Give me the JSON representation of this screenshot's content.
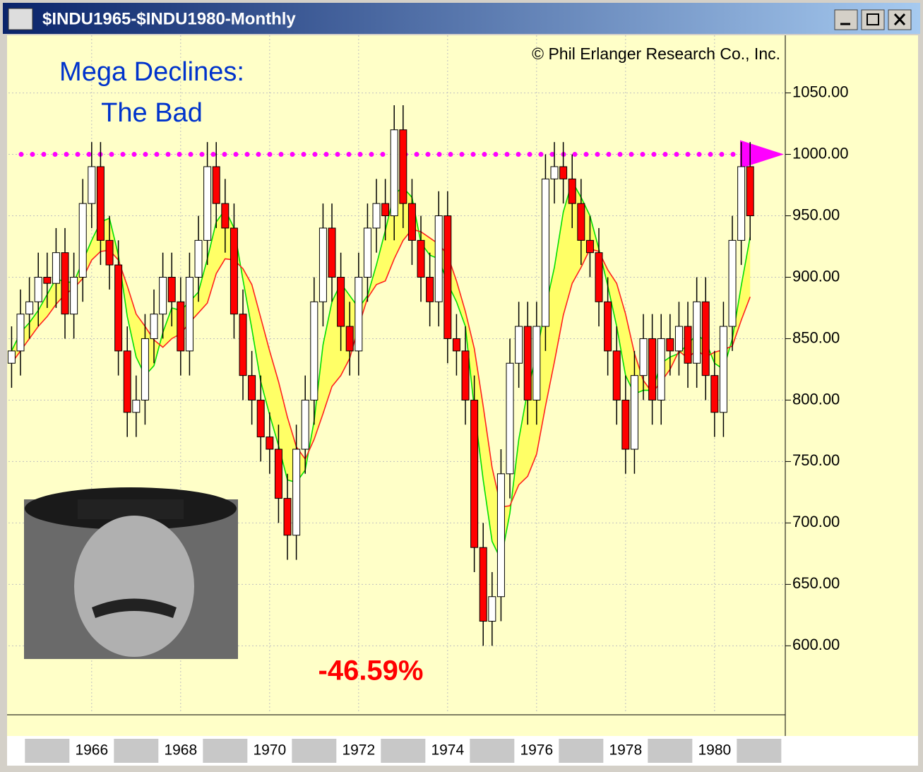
{
  "window_title": "$INDU1965-$INDU1980-Monthly",
  "chart_data": {
    "type": "candlestick",
    "copyright": "© Phil Erlanger Research Co., Inc.",
    "annotations": [
      "Mega Declines:",
      "The Bad",
      "-46.59%"
    ],
    "up_color": "#ffffff",
    "down_color": "#ff0000",
    "band_color": "#ffff66",
    "reference_line": {
      "value": 1000,
      "color": "#ff00ff"
    },
    "xlim": [
      1964.13,
      1981.59
    ],
    "ylim": [
      545,
      1090
    ],
    "xticks": [
      1966,
      1968,
      1970,
      1972,
      1974,
      1976,
      1978,
      1980
    ],
    "yticks": [
      {
        "value": 600,
        "label": "600.00"
      },
      {
        "value": 650,
        "label": "650.00"
      },
      {
        "value": 700,
        "label": "700.00"
      },
      {
        "value": 750,
        "label": "750.00"
      },
      {
        "value": 800,
        "label": "800.00"
      },
      {
        "value": 850,
        "label": "850.00"
      },
      {
        "value": 900,
        "label": "900.00"
      },
      {
        "value": 950,
        "label": "950.00"
      },
      {
        "value": 1000,
        "label": "1000.00"
      },
      {
        "value": 1050,
        "label": "1050.00"
      }
    ],
    "grid": true,
    "x": [
      1964.2,
      1964.4,
      1964.6,
      1964.8,
      1965.0,
      1965.2,
      1965.4,
      1965.6,
      1965.8,
      1966.0,
      1966.2,
      1966.4,
      1966.6,
      1966.8,
      1967.0,
      1967.2,
      1967.4,
      1967.6,
      1967.8,
      1968.0,
      1968.2,
      1968.4,
      1968.6,
      1968.8,
      1969.0,
      1969.2,
      1969.4,
      1969.6,
      1969.8,
      1970.0,
      1970.2,
      1970.4,
      1970.6,
      1970.8,
      1971.0,
      1971.2,
      1971.4,
      1971.6,
      1971.8,
      1972.0,
      1972.2,
      1972.4,
      1972.6,
      1972.8,
      1973.0,
      1973.2,
      1973.4,
      1973.6,
      1973.8,
      1974.0,
      1974.2,
      1974.4,
      1974.6,
      1974.8,
      1975.0,
      1975.2,
      1975.4,
      1975.6,
      1975.8,
      1976.0,
      1976.2,
      1976.4,
      1976.6,
      1976.8,
      1977.0,
      1977.2,
      1977.4,
      1977.6,
      1977.8,
      1978.0,
      1978.2,
      1978.4,
      1978.6,
      1978.8,
      1979.0,
      1979.2,
      1979.4,
      1979.6,
      1979.8,
      1980.0,
      1980.2,
      1980.4,
      1980.6,
      1980.8
    ],
    "open": [
      830,
      840,
      870,
      880,
      900,
      895,
      920,
      870,
      900,
      960,
      990,
      930,
      910,
      840,
      790,
      800,
      850,
      870,
      900,
      880,
      840,
      900,
      930,
      990,
      960,
      940,
      870,
      820,
      800,
      770,
      760,
      720,
      690,
      760,
      800,
      880,
      940,
      900,
      860,
      840,
      900,
      940,
      960,
      950,
      1020,
      960,
      930,
      900,
      880,
      950,
      850,
      840,
      800,
      680,
      620,
      640,
      740,
      830,
      860,
      800,
      860,
      980,
      990,
      980,
      960,
      930,
      920,
      880,
      840,
      800,
      760,
      820,
      850,
      800,
      850,
      840,
      860,
      830,
      880,
      820,
      790,
      860,
      930,
      990
    ],
    "high": [
      860,
      890,
      900,
      920,
      920,
      940,
      940,
      920,
      980,
      1010,
      1010,
      950,
      930,
      860,
      820,
      870,
      890,
      920,
      920,
      900,
      920,
      950,
      1010,
      1010,
      980,
      960,
      890,
      840,
      820,
      790,
      780,
      740,
      780,
      820,
      900,
      960,
      960,
      920,
      880,
      920,
      960,
      980,
      980,
      1040,
      1040,
      980,
      950,
      920,
      970,
      970,
      870,
      860,
      820,
      700,
      660,
      760,
      850,
      880,
      880,
      880,
      1000,
      1010,
      1010,
      1000,
      980,
      950,
      940,
      900,
      860,
      820,
      840,
      870,
      870,
      870,
      870,
      880,
      880,
      900,
      900,
      840,
      880,
      950,
      1010,
      1010
    ],
    "low": [
      810,
      820,
      850,
      860,
      875,
      875,
      850,
      850,
      880,
      940,
      910,
      890,
      820,
      770,
      770,
      780,
      830,
      850,
      860,
      820,
      820,
      880,
      910,
      940,
      920,
      850,
      800,
      780,
      750,
      740,
      700,
      670,
      670,
      740,
      780,
      860,
      880,
      840,
      820,
      820,
      880,
      920,
      930,
      930,
      940,
      910,
      880,
      860,
      860,
      830,
      820,
      780,
      660,
      600,
      600,
      620,
      720,
      810,
      780,
      780,
      840,
      960,
      960,
      940,
      910,
      900,
      860,
      820,
      780,
      740,
      740,
      800,
      780,
      780,
      820,
      820,
      810,
      810,
      800,
      770,
      770,
      840,
      910,
      930
    ],
    "close": [
      840,
      870,
      880,
      900,
      895,
      920,
      870,
      900,
      960,
      990,
      930,
      910,
      840,
      790,
      800,
      850,
      870,
      900,
      880,
      840,
      900,
      930,
      990,
      960,
      940,
      870,
      820,
      800,
      770,
      760,
      720,
      690,
      760,
      800,
      880,
      940,
      900,
      860,
      840,
      900,
      940,
      960,
      950,
      1020,
      960,
      930,
      900,
      880,
      950,
      850,
      840,
      800,
      680,
      620,
      640,
      740,
      830,
      860,
      800,
      860,
      980,
      990,
      980,
      960,
      930,
      920,
      880,
      840,
      800,
      760,
      820,
      850,
      800,
      850,
      840,
      860,
      830,
      880,
      820,
      790,
      860,
      930,
      990,
      950
    ],
    "series": [
      {
        "color": "#00e000",
        "values": [
          840,
          855,
          863,
          873,
          886,
          899,
          896,
          896,
          913,
          930,
          945,
          948,
          918,
          868,
          835,
          820,
          828,
          855,
          875,
          873,
          880,
          888,
          915,
          945,
          955,
          940,
          898,
          858,
          815,
          788,
          763,
          735,
          733,
          743,
          783,
          845,
          880,
          895,
          885,
          875,
          885,
          910,
          938,
          968,
          973,
          965,
          928,
          918,
          915,
          895,
          880,
          860,
          793,
          735,
          685,
          670,
          708,
          768,
          808,
          838,
          875,
          908,
          953,
          978,
          965,
          950,
          923,
          893,
          860,
          820,
          805,
          808,
          808,
          830,
          835,
          838,
          846,
          853,
          848,
          830,
          825,
          850,
          893,
          933
        ]
      },
      {
        "color": "#ff2020",
        "values": [
          830,
          840,
          850,
          860,
          868,
          878,
          886,
          891,
          899,
          914,
          921,
          922,
          914,
          893,
          870,
          860,
          849,
          843,
          850,
          854,
          863,
          871,
          879,
          903,
          915,
          914,
          907,
          894,
          867,
          840,
          815,
          786,
          762,
          752,
          768,
          789,
          811,
          820,
          834,
          860,
          883,
          894,
          897,
          915,
          930,
          939,
          937,
          932,
          927,
          918,
          897,
          872,
          842,
          795,
          745,
          713,
          714,
          731,
          738,
          756,
          795,
          831,
          869,
          895,
          908,
          923,
          921,
          906,
          895,
          870,
          838,
          816,
          806,
          815,
          825,
          840,
          834,
          841,
          835,
          839,
          841,
          844,
          865,
          884
        ]
      }
    ]
  }
}
